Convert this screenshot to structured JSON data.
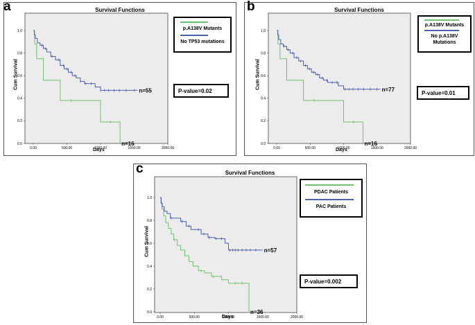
{
  "chart_data": [
    {
      "type": "line",
      "panel_label": "a",
      "title": "Survival Functions",
      "xlabel": "Days",
      "ylabel": "Cum Survival",
      "xlim": [
        0,
        2000
      ],
      "ylim": [
        0,
        1.0
      ],
      "x_ticks": [
        "0.00",
        "500.00",
        "1000.00",
        "1500.00",
        "2000.00"
      ],
      "y_ticks": [
        "0.0",
        "0.2",
        "0.4",
        "0.6",
        "0.8",
        "1.0"
      ],
      "legend": [
        "p.A138V Mutants",
        "No TP53 mutations"
      ],
      "p_value": "P-value=0.02",
      "series": [
        {
          "name": "p.A138V Mutants",
          "color": "#6dc36d",
          "n_label": "n=16",
          "x": [
            0,
            20,
            50,
            150,
            400,
            550,
            980,
            1000,
            1280,
            1290
          ],
          "y": [
            1.0,
            0.88,
            0.75,
            0.56,
            0.38,
            0.38,
            0.38,
            0.19,
            0.19,
            0.0
          ],
          "censor_x": [
            560,
            1150
          ]
        },
        {
          "name": "No TP53 mutations",
          "color": "#4a5fae",
          "n_label": "n=55",
          "x": [
            0,
            15,
            30,
            60,
            100,
            150,
            200,
            260,
            330,
            400,
            460,
            520,
            580,
            640,
            700,
            760,
            820,
            920,
            1000,
            1100,
            1550
          ],
          "y": [
            1.0,
            0.96,
            0.93,
            0.89,
            0.87,
            0.84,
            0.81,
            0.77,
            0.74,
            0.69,
            0.66,
            0.63,
            0.6,
            0.58,
            0.55,
            0.53,
            0.53,
            0.5,
            0.47,
            0.47,
            0.47
          ],
          "censor_x": [
            130,
            180,
            280,
            380,
            450,
            500,
            560,
            620,
            700,
            780,
            860,
            1000,
            1060,
            1120,
            1200,
            1280,
            1380,
            1500
          ]
        }
      ]
    },
    {
      "type": "line",
      "panel_label": "b",
      "title": "Survival Functions",
      "xlabel": "Days",
      "ylabel": "Cum Survival",
      "xlim": [
        0,
        2000
      ],
      "ylim": [
        0,
        1.0
      ],
      "x_ticks": [
        "0.00",
        "500.00",
        "1000.00",
        "1500.00",
        "2000.00"
      ],
      "y_ticks": [
        "0.0",
        "0.2",
        "0.4",
        "0.6",
        "0.8",
        "1.0"
      ],
      "legend": [
        "p.A138V Mutants",
        "No p.A138V Mutations"
      ],
      "p_value": "P-value=0.01",
      "series": [
        {
          "name": "p.A138V Mutants",
          "color": "#6dc36d",
          "n_label": "n=16",
          "x": [
            0,
            20,
            50,
            150,
            400,
            550,
            980,
            1000,
            1280,
            1290
          ],
          "y": [
            1.0,
            0.88,
            0.75,
            0.56,
            0.38,
            0.38,
            0.38,
            0.19,
            0.19,
            0.0
          ],
          "censor_x": [
            560,
            1150
          ]
        },
        {
          "name": "No p.A138V Mutations",
          "color": "#4a5fae",
          "n_label": "n=77",
          "x": [
            0,
            15,
            30,
            60,
            100,
            150,
            200,
            260,
            330,
            400,
            460,
            520,
            580,
            640,
            700,
            760,
            820,
            920,
            1000,
            1100,
            1550
          ],
          "y": [
            1.0,
            0.96,
            0.92,
            0.88,
            0.86,
            0.83,
            0.8,
            0.76,
            0.73,
            0.69,
            0.66,
            0.63,
            0.61,
            0.58,
            0.56,
            0.54,
            0.54,
            0.51,
            0.48,
            0.48,
            0.48
          ],
          "censor_x": [
            110,
            170,
            240,
            300,
            360,
            430,
            490,
            550,
            610,
            680,
            750,
            830,
            900,
            1020,
            1080,
            1140,
            1220,
            1300,
            1400,
            1500
          ]
        }
      ]
    },
    {
      "type": "line",
      "panel_label": "c",
      "title": "Survival Functions",
      "xlabel": "Days",
      "ylabel": "Cum Survival",
      "xlim": [
        0,
        2000
      ],
      "ylim": [
        0,
        1.0
      ],
      "x_ticks": [
        "0.00",
        "500.00",
        "1000.00",
        "1500.00",
        "2000.00"
      ],
      "y_ticks": [
        "0.0",
        "0.2",
        "0.4",
        "0.6",
        "0.8",
        "1.0"
      ],
      "legend": [
        "PDAC Patients",
        "PAC Patients"
      ],
      "p_value": "P-value=0.002",
      "series": [
        {
          "name": "PDAC Patients",
          "color": "#6dc36d",
          "n_label": "n=36",
          "x": [
            0,
            10,
            25,
            50,
            80,
            120,
            160,
            200,
            250,
            300,
            360,
            420,
            480,
            560,
            650,
            750,
            900,
            1000,
            1290,
            1300
          ],
          "y": [
            1.0,
            0.95,
            0.9,
            0.84,
            0.78,
            0.73,
            0.68,
            0.63,
            0.58,
            0.54,
            0.49,
            0.44,
            0.4,
            0.36,
            0.34,
            0.31,
            0.28,
            0.25,
            0.25,
            0.0
          ],
          "censor_x": [
            210,
            600,
            780,
            1100,
            1200
          ]
        },
        {
          "name": "PAC Patients",
          "color": "#4a5fae",
          "n_label": "n=57",
          "x": [
            0,
            15,
            30,
            60,
            100,
            150,
            200,
            300,
            380,
            450,
            520,
            600,
            700,
            800,
            950,
            1000,
            1500
          ],
          "y": [
            1.0,
            0.95,
            0.92,
            0.88,
            0.86,
            0.82,
            0.82,
            0.79,
            0.75,
            0.72,
            0.72,
            0.68,
            0.65,
            0.64,
            0.6,
            0.54,
            0.54
          ],
          "censor_x": [
            160,
            320,
            420,
            560,
            640,
            720,
            820,
            900,
            1020,
            1060,
            1100,
            1140,
            1200,
            1260,
            1320,
            1400
          ]
        }
      ]
    }
  ]
}
